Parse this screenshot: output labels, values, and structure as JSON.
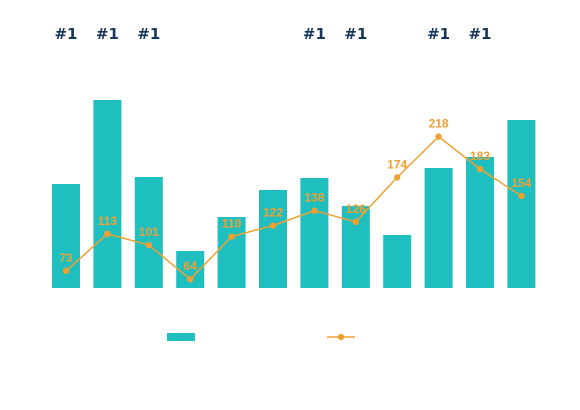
{
  "chart_data": {
    "type": "bar",
    "categories": [
      "",
      "",
      "",
      "",
      "",
      "",
      "",
      "",
      "",
      "",
      "",
      ""
    ],
    "series": [
      {
        "type": "bar",
        "color": "#20bfbf",
        "values": [
          104,
          188,
          111,
          37,
          71,
          98,
          110,
          82,
          53,
          120,
          131,
          168
        ]
      },
      {
        "type": "line",
        "color": "#f0a030",
        "values": [
          73,
          113,
          101,
          64,
          110,
          122,
          138,
          126,
          174,
          218,
          183,
          154
        ],
        "labels": [
          "73",
          "113",
          "101",
          "64",
          "110",
          "122",
          "138",
          "126",
          "174",
          "218",
          "183",
          "154"
        ]
      }
    ],
    "rank_labels": [
      "#1",
      "#1",
      "#1",
      "",
      "",
      "",
      "#1",
      "#1",
      "",
      "#1",
      "#1",
      ""
    ],
    "legend": {
      "position": "bottom",
      "entries": [
        {
          "type": "bar-swatch",
          "color": "#20bfbf"
        },
        {
          "type": "line-marker",
          "color": "#f0a030"
        }
      ]
    },
    "grid": false
  }
}
